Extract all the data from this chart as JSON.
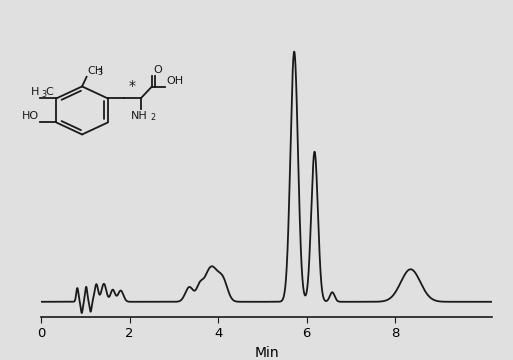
{
  "background_color": "#e0e0e0",
  "line_color": "#1a1a1a",
  "line_width": 1.3,
  "xlabel": "Min",
  "xlabel_fontsize": 10,
  "tick_fontsize": 9.5,
  "xlim": [
    0,
    10.2
  ],
  "ylim": [
    -0.06,
    1.12
  ],
  "xticks": [
    0,
    2,
    4,
    6,
    8
  ],
  "figsize": [
    5.13,
    3.6
  ],
  "dpi": 100,
  "peaks": [
    {
      "mu": 0.82,
      "sigma": 0.025,
      "amp": 0.055
    },
    {
      "mu": 0.92,
      "sigma": 0.022,
      "amp": -0.045
    },
    {
      "mu": 1.02,
      "sigma": 0.025,
      "amp": 0.06
    },
    {
      "mu": 1.12,
      "sigma": 0.022,
      "amp": -0.04
    },
    {
      "mu": 1.25,
      "sigma": 0.04,
      "amp": 0.07
    },
    {
      "mu": 1.42,
      "sigma": 0.055,
      "amp": 0.072
    },
    {
      "mu": 1.62,
      "sigma": 0.05,
      "amp": 0.048
    },
    {
      "mu": 1.8,
      "sigma": 0.06,
      "amp": 0.045
    },
    {
      "mu": 3.35,
      "sigma": 0.09,
      "amp": 0.058
    },
    {
      "mu": 3.58,
      "sigma": 0.07,
      "amp": 0.042
    },
    {
      "mu": 3.85,
      "sigma": 0.16,
      "amp": 0.14
    },
    {
      "mu": 4.12,
      "sigma": 0.1,
      "amp": 0.065
    },
    {
      "mu": 5.72,
      "sigma": 0.085,
      "amp": 1.0
    },
    {
      "mu": 6.18,
      "sigma": 0.075,
      "amp": 0.6
    },
    {
      "mu": 6.58,
      "sigma": 0.055,
      "amp": 0.038
    },
    {
      "mu": 8.35,
      "sigma": 0.22,
      "amp": 0.13
    }
  ]
}
